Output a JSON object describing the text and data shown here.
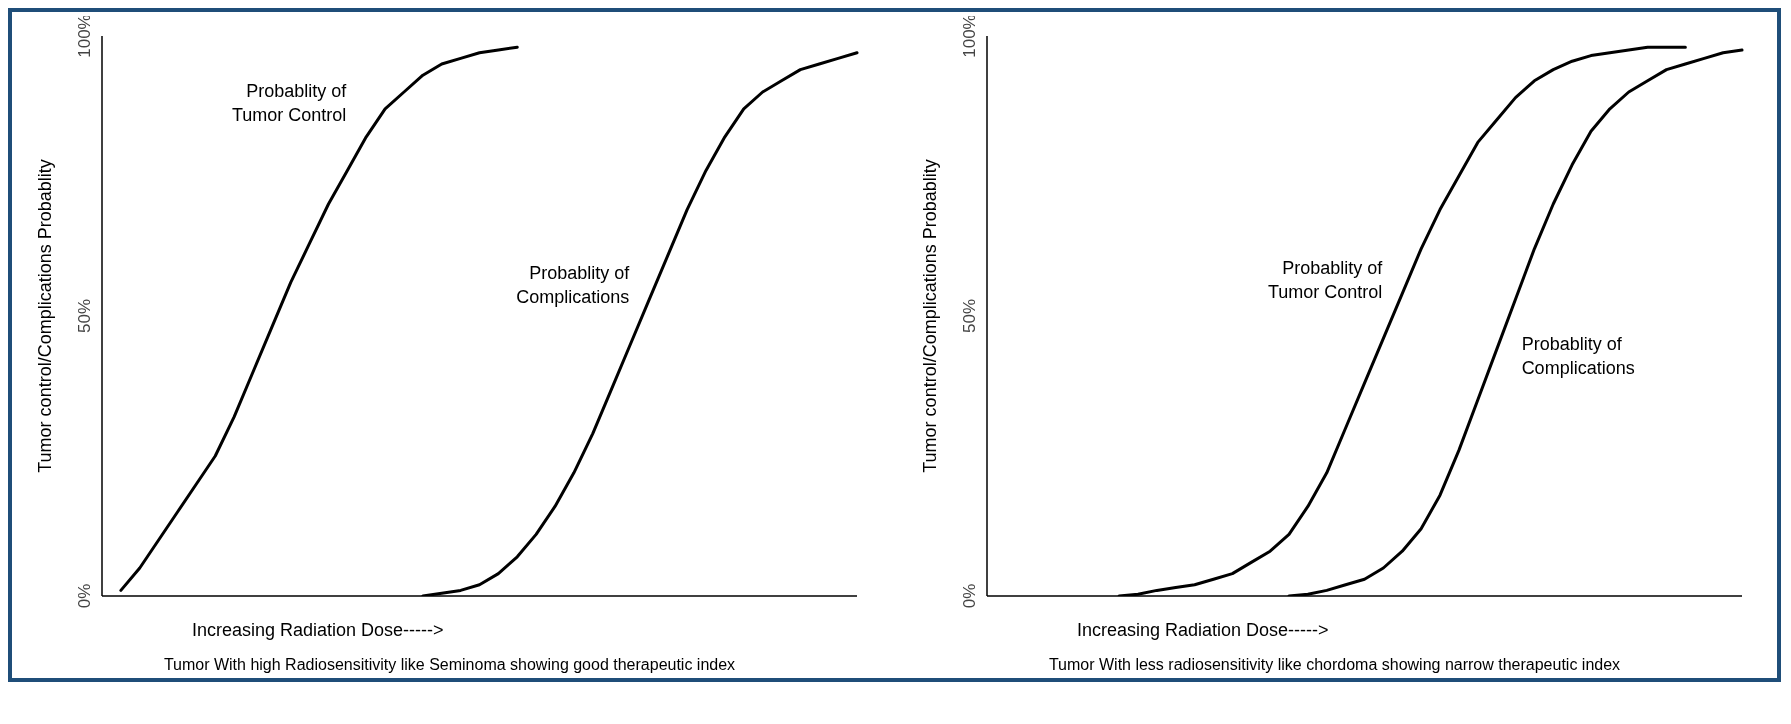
{
  "chart_data": [
    {
      "type": "line",
      "xlabel": "Increasing Radiation Dose----->",
      "ylabel": "Tumor control/Complications Probablity",
      "categories": [
        null,
        null,
        null,
        null,
        null,
        null,
        null,
        null,
        null,
        null,
        null,
        null,
        null,
        null,
        null,
        null,
        null,
        null,
        null,
        null,
        null,
        null,
        null,
        null,
        null,
        null,
        null,
        null,
        null,
        null,
        null,
        null,
        null,
        null,
        null,
        null,
        null,
        null,
        null,
        null,
        null
      ],
      "ylim": [
        0,
        100
      ],
      "yticks": [
        {
          "value": 0,
          "label": "0%"
        },
        {
          "value": 50,
          "label": "50%"
        },
        {
          "value": 100,
          "label": "100%"
        }
      ],
      "series": [
        {
          "name": "Probablity of Tumor Control",
          "color": "#000000",
          "values": [
            null,
            1,
            5,
            10,
            15,
            20,
            25,
            32,
            40,
            48,
            56,
            63,
            70,
            76,
            82,
            87,
            90,
            93,
            95,
            96,
            97,
            97.5,
            98,
            null,
            null,
            null,
            null,
            null,
            null,
            null,
            null,
            null,
            null,
            null,
            null,
            null,
            null,
            null,
            null,
            null,
            null
          ]
        },
        {
          "name": "Probablity of Complications",
          "color": "#000000",
          "values": [
            null,
            null,
            null,
            null,
            null,
            null,
            null,
            null,
            null,
            null,
            null,
            null,
            null,
            null,
            null,
            null,
            null,
            0,
            0.5,
            1,
            2,
            4,
            7,
            11,
            16,
            22,
            29,
            37,
            45,
            53,
            61,
            69,
            76,
            82,
            87,
            90,
            92,
            94,
            95,
            96,
            97
          ]
        }
      ],
      "annotations": [
        "Tumor With high Radiosensitivity like Seminoma showing good therapeutic index"
      ]
    },
    {
      "type": "line",
      "xlabel": "Increasing Radiation Dose----->",
      "ylabel": "Tumor control/Complications Probablity",
      "categories": [
        null,
        null,
        null,
        null,
        null,
        null,
        null,
        null,
        null,
        null,
        null,
        null,
        null,
        null,
        null,
        null,
        null,
        null,
        null,
        null,
        null,
        null,
        null,
        null,
        null,
        null,
        null,
        null,
        null,
        null,
        null,
        null,
        null,
        null,
        null,
        null,
        null,
        null,
        null,
        null,
        null
      ],
      "ylim": [
        0,
        100
      ],
      "yticks": [
        {
          "value": 0,
          "label": "0%"
        },
        {
          "value": 50,
          "label": "50%"
        },
        {
          "value": 100,
          "label": "100%"
        }
      ],
      "series": [
        {
          "name": "Probablity of Tumor Control",
          "color": "#000000",
          "values": [
            null,
            null,
            null,
            null,
            null,
            null,
            null,
            0,
            0.3,
            1,
            1.5,
            2,
            3,
            4,
            6,
            8,
            11,
            16,
            22,
            30,
            38,
            46,
            54,
            62,
            69,
            75,
            81,
            85,
            89,
            92,
            94,
            95.5,
            96.5,
            97,
            97.5,
            98,
            98,
            98,
            null,
            null,
            null
          ]
        },
        {
          "name": "Probablity of Complications",
          "color": "#000000",
          "values": [
            null,
            null,
            null,
            null,
            null,
            null,
            null,
            null,
            null,
            null,
            null,
            null,
            null,
            null,
            null,
            null,
            0,
            0.3,
            1,
            2,
            3,
            5,
            8,
            12,
            18,
            26,
            35,
            44,
            53,
            62,
            70,
            77,
            83,
            87,
            90,
            92,
            94,
            95,
            96,
            97,
            97.5
          ]
        }
      ],
      "annotations": [
        "Tumor With less radiosensitivity like chordoma showing narrow therapeutic index"
      ]
    }
  ]
}
